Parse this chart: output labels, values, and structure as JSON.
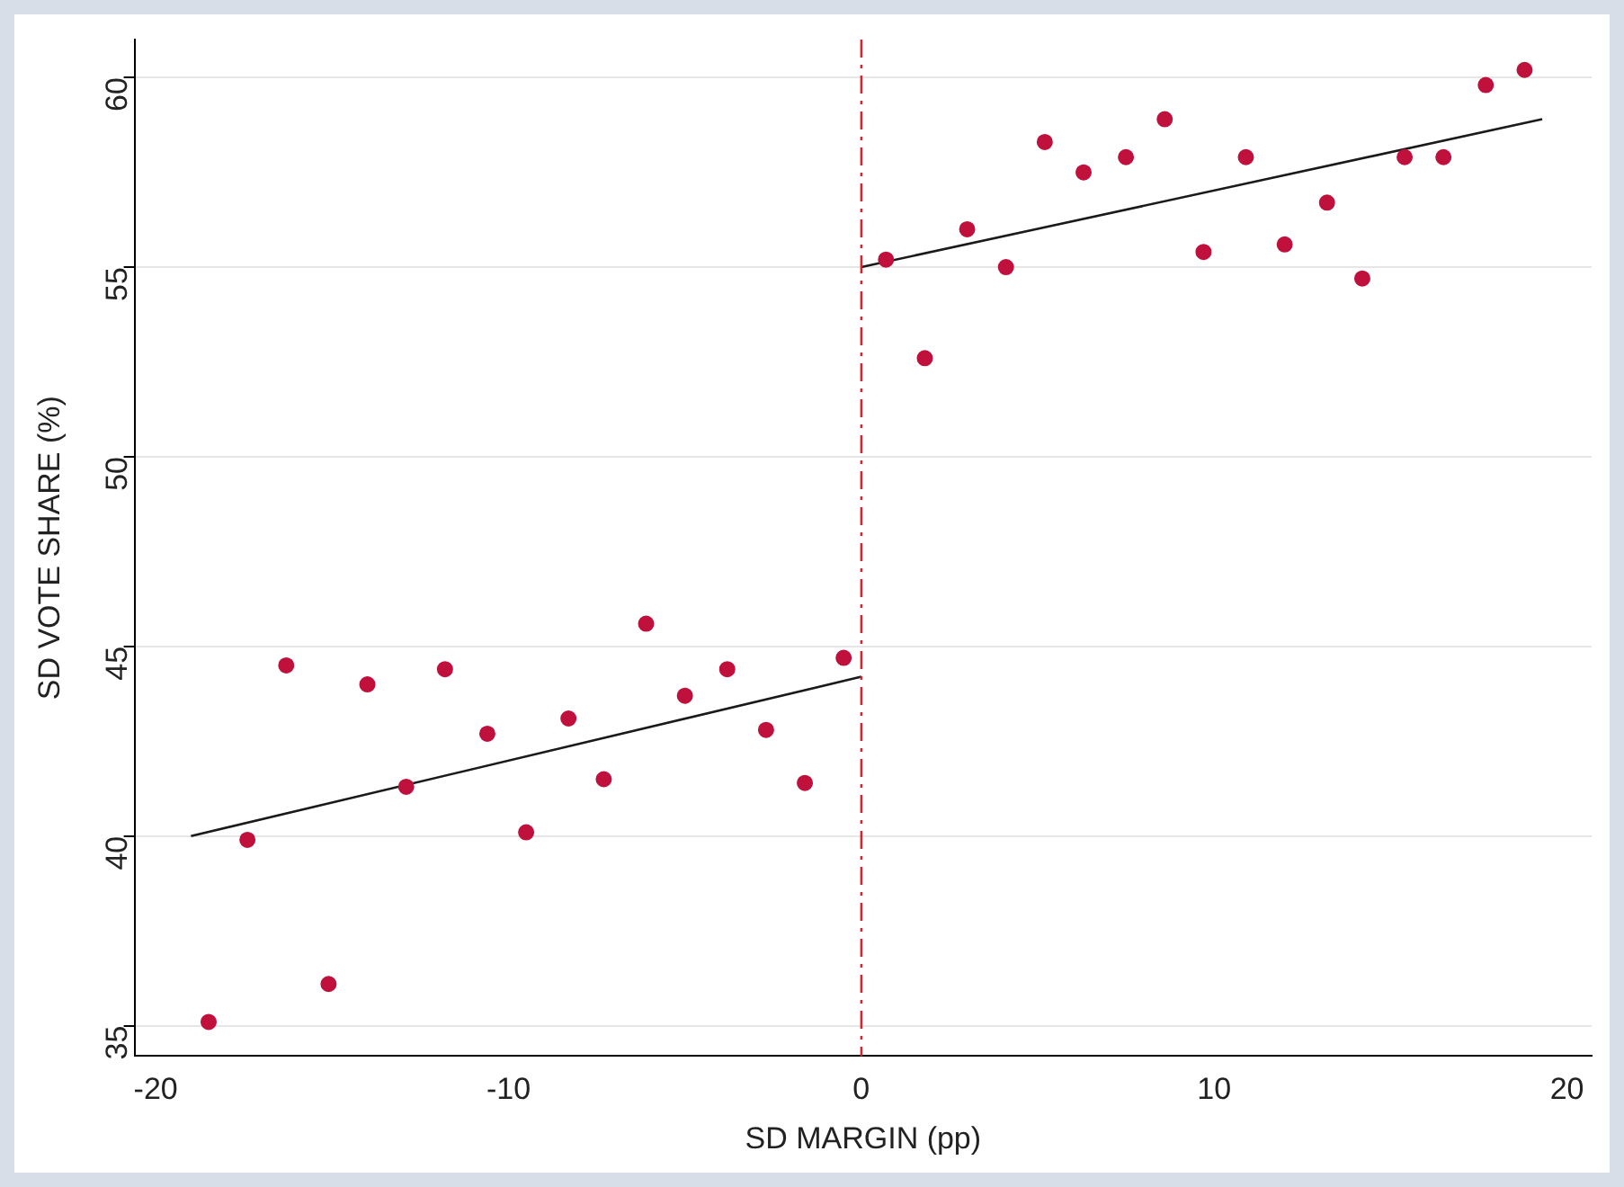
{
  "chart_data": {
    "type": "scatter",
    "xlabel": "SD MARGIN (pp)",
    "ylabel": "SD VOTE SHARE (%)",
    "xlim": [
      -20.6,
      20.7
    ],
    "ylim": [
      34.2,
      61
    ],
    "xticks": [
      -20,
      -10,
      0,
      10,
      20
    ],
    "yticks": [
      35,
      40,
      45,
      50,
      55,
      60
    ],
    "grid": "y",
    "legend": false,
    "series": [
      {
        "marker": "circle",
        "color": "#c0103c",
        "x": [
          -18.5,
          -17.4,
          -16.3,
          -15.1,
          -14.0,
          -12.9,
          -11.8,
          -10.6,
          -9.5,
          -8.3,
          -7.3,
          -6.1,
          -5.0,
          -3.8,
          -2.7,
          -1.6,
          -0.5,
          0.7,
          1.8,
          3.0,
          4.1,
          5.2,
          6.3,
          7.5,
          8.6,
          9.7,
          10.9,
          12.0,
          13.2,
          14.2,
          15.4,
          16.5,
          17.7,
          18.8
        ],
        "values": [
          35.1,
          39.9,
          44.5,
          36.1,
          44.0,
          41.3,
          44.4,
          42.7,
          40.1,
          43.1,
          41.5,
          45.6,
          43.7,
          44.4,
          42.8,
          41.4,
          44.7,
          55.2,
          52.6,
          56.0,
          55.0,
          58.3,
          57.5,
          57.9,
          58.9,
          55.4,
          57.9,
          55.6,
          56.7,
          54.7,
          57.9,
          57.9,
          59.8,
          60.2
        ]
      },
      {
        "type": "line",
        "marker": "none",
        "color": "#1a1a1a",
        "x": [
          -19,
          0
        ],
        "values": [
          40.0,
          44.2
        ]
      },
      {
        "type": "line",
        "marker": "none",
        "color": "#1a1a1a",
        "x": [
          0,
          19.3
        ],
        "values": [
          55.0,
          58.9
        ]
      }
    ],
    "ref_lines": [
      {
        "axis": "x",
        "value": 0,
        "color": "#e0202a",
        "line_style": "dashdot"
      }
    ]
  }
}
